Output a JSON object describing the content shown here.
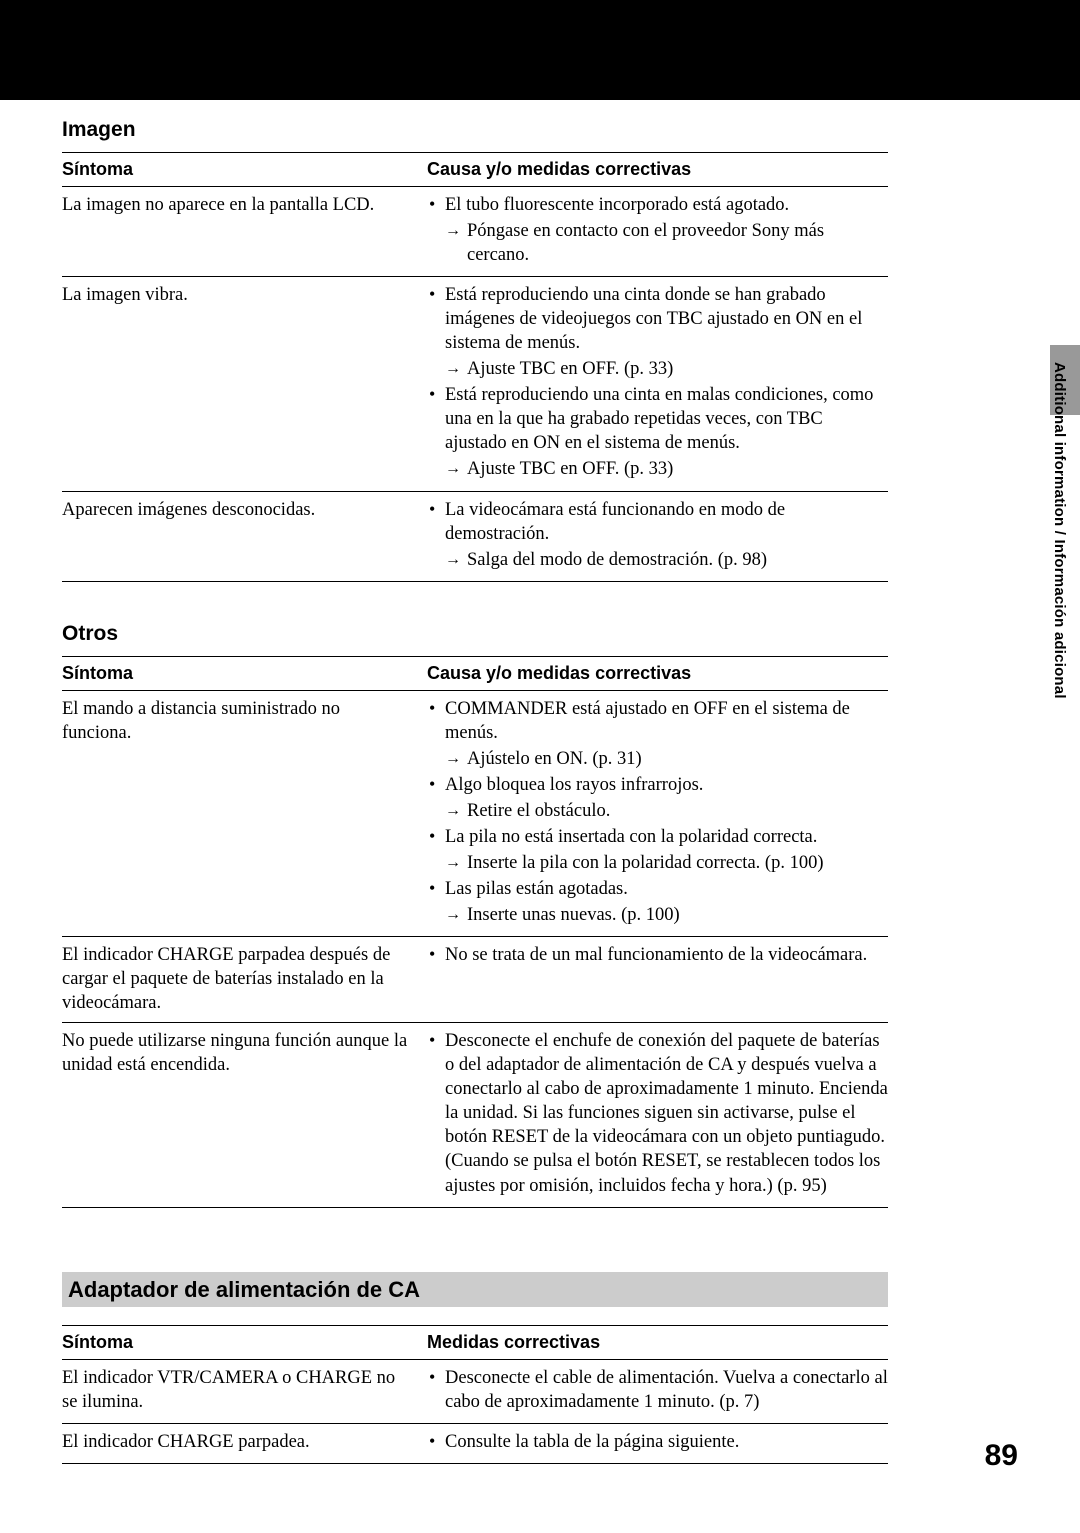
{
  "colors": {
    "black": "#000000",
    "gray_bar": "#cccccc",
    "gray_tab": "#999999",
    "white": "#ffffff"
  },
  "typography": {
    "body_fontsize_pt": 14,
    "heading_fontsize_pt": 16,
    "body_family": "serif",
    "heading_family": "sans-serif"
  },
  "side_label": "Additional information / Información adicional",
  "page_number": "89",
  "sections": {
    "imagen": {
      "title": "Imagen",
      "header_sym": "Síntoma",
      "header_cause": "Causa y/o medidas correctivas",
      "rows": [
        {
          "symptom": "La imagen no aparece en la pantalla LCD.",
          "causes": [
            {
              "bullet": "El tubo fluorescente incorporado está agotado.",
              "arrow": "Póngase en contacto con el proveedor Sony más cercano."
            }
          ]
        },
        {
          "symptom": "La imagen vibra.",
          "causes": [
            {
              "bullet": "Está reproduciendo una cinta donde se han grabado imágenes de videojuegos con TBC ajustado en ON en el sistema de menús.",
              "arrow": "Ajuste TBC en OFF. (p. 33)"
            },
            {
              "bullet": "Está reproduciendo una cinta en malas condiciones, como una en la que ha grabado repetidas veces, con TBC ajustado en ON en el sistema de menús.",
              "arrow": "Ajuste TBC en OFF. (p. 33)"
            }
          ]
        },
        {
          "symptom": "Aparecen imágenes desconocidas.",
          "causes": [
            {
              "bullet": "La videocámara está funcionando en modo de demostración.",
              "arrow": "Salga del modo de demostración. (p. 98)"
            }
          ]
        }
      ]
    },
    "otros": {
      "title": "Otros",
      "header_sym": "Síntoma",
      "header_cause": "Causa y/o medidas correctivas",
      "rows": [
        {
          "symptom": "El mando a distancia suministrado no funciona.",
          "causes": [
            {
              "bullet": "COMMANDER está ajustado en OFF en el sistema de menús.",
              "arrow": "Ajústelo en ON. (p. 31)"
            },
            {
              "bullet": "Algo bloquea los rayos infrarrojos.",
              "arrow": "Retire el obstáculo."
            },
            {
              "bullet": "La pila no está insertada con la polaridad correcta.",
              "arrow": "Inserte la pila con la polaridad correcta. (p. 100)"
            },
            {
              "bullet": "Las pilas están agotadas.",
              "arrow": "Inserte unas nuevas. (p. 100)"
            }
          ]
        },
        {
          "symptom": "El indicador CHARGE parpadea después de cargar el paquete de baterías instalado en la videocámara.",
          "causes": [
            {
              "bullet": "No se trata de un mal funcionamiento de la videocámara."
            }
          ]
        },
        {
          "symptom": "No puede utilizarse ninguna función aunque la unidad está encendida.",
          "causes": [
            {
              "bullet": "Desconecte el enchufe de conexión del paquete de baterías o del adaptador de alimentación de CA y después vuelva a conectarlo al cabo de aproximadamente 1 minuto. Encienda la unidad. Si las funciones siguen sin activarse, pulse el botón RESET de la videocámara con un objeto puntiagudo. (Cuando se pulsa el botón RESET, se restablecen todos los ajustes por omisión, incluidos fecha y hora.) (p. 95)"
            }
          ]
        }
      ]
    },
    "adaptador": {
      "title": "Adaptador de alimentación de CA",
      "header_sym": "Síntoma",
      "header_cause": "Medidas correctivas",
      "rows": [
        {
          "symptom": "El indicador VTR/CAMERA o CHARGE no se ilumina.",
          "causes": [
            {
              "bullet": "Desconecte el cable de alimentación. Vuelva a conectarlo al cabo de aproximadamente 1 minuto. (p. 7)"
            }
          ]
        },
        {
          "symptom": "El indicador CHARGE parpadea.",
          "causes": [
            {
              "bullet": "Consulte la tabla de la página siguiente."
            }
          ]
        }
      ]
    }
  }
}
